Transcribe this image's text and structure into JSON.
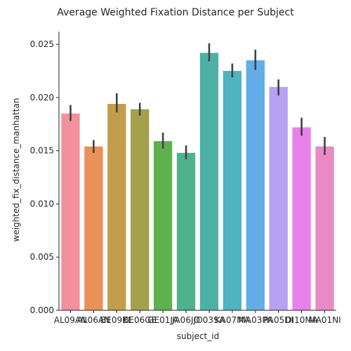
{
  "chart_data": {
    "type": "bar",
    "title": "Average Weighted Fixation Distance per Subject",
    "xlabel": "subject_id",
    "ylabel": "weighted_fix_distance_manhattan",
    "ylim": [
      0,
      0.0262
    ],
    "yticks": [
      0.0,
      0.005,
      0.01,
      0.015,
      0.02,
      0.025
    ],
    "ytick_labels": [
      "0.000",
      "0.005",
      "0.010",
      "0.015",
      "0.020",
      "0.025"
    ],
    "grid": false,
    "legend": "none",
    "categories": [
      "AL09AN",
      "AL06AN",
      "BE09KE",
      "BE06GE",
      "GE01JA",
      "JA06JO",
      "JO03SA",
      "KA07MA",
      "MA03PA",
      "PA05DI",
      "DI10MA",
      "MA01NI"
    ],
    "values": [
      0.0185,
      0.0154,
      0.0194,
      0.0189,
      0.0159,
      0.0148,
      0.0242,
      0.0225,
      0.0235,
      0.021,
      0.0172,
      0.0154
    ],
    "ci_low": [
      0.0178,
      0.0148,
      0.0186,
      0.0183,
      0.0152,
      0.0142,
      0.0234,
      0.0219,
      0.0226,
      0.0202,
      0.0164,
      0.0146
    ],
    "ci_high": [
      0.0193,
      0.016,
      0.0204,
      0.0195,
      0.0167,
      0.0155,
      0.0251,
      0.0232,
      0.0245,
      0.0217,
      0.0181,
      0.0163
    ],
    "colors": [
      "#f0919c",
      "#e8925a",
      "#c29d4b",
      "#a4a14c",
      "#5fb14f",
      "#4fb28e",
      "#4fb1a6",
      "#4fb3c1",
      "#63aee6",
      "#b5a2f0",
      "#e782ea",
      "#ea8ac4"
    ]
  }
}
